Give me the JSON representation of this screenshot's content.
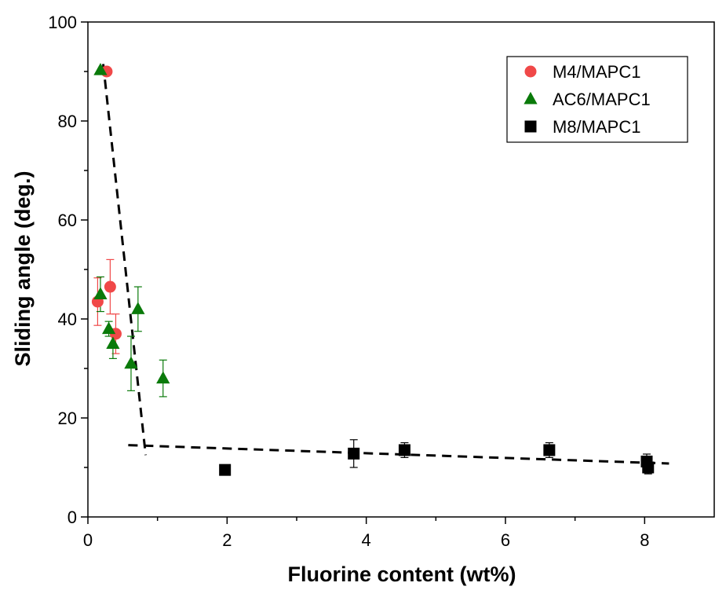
{
  "chart_data": {
    "type": "scatter",
    "xlabel": "Fluorine content (wt%)",
    "ylabel": "Sliding angle (deg.)",
    "xlim": [
      0,
      9
    ],
    "ylim": [
      0,
      100
    ],
    "xticks": [
      0,
      2,
      4,
      6,
      8
    ],
    "xticks_minor": [
      1,
      3,
      5,
      7
    ],
    "yticks": [
      0,
      20,
      40,
      60,
      80,
      100
    ],
    "yticks_minor": [
      10,
      30,
      50,
      70,
      90
    ],
    "x_tick_labels": [
      "0",
      "2",
      "4",
      "6",
      "8"
    ],
    "y_tick_labels": [
      "0",
      "20",
      "40",
      "60",
      "80",
      "100"
    ],
    "grid": false,
    "legend": {
      "position": "top-right"
    },
    "series": [
      {
        "name": "M4/MAPC1",
        "marker": "circle",
        "color": "#f04848",
        "errorbar_color": "#f04848",
        "points": [
          {
            "x": 0.14,
            "y": 43.5,
            "err": 4.8
          },
          {
            "x": 0.27,
            "y": 90.0,
            "err": 0
          },
          {
            "x": 0.32,
            "y": 46.5,
            "err": 5.5
          },
          {
            "x": 0.4,
            "y": 37.0,
            "err": 4.0
          }
        ]
      },
      {
        "name": "AC6/MAPC1",
        "marker": "triangle",
        "color": "#0a7a0a",
        "errorbar_color": "#0a7a0a",
        "points": [
          {
            "x": 0.18,
            "y": 90.3,
            "err": 0
          },
          {
            "x": 0.18,
            "y": 45.0,
            "err": 3.5
          },
          {
            "x": 0.3,
            "y": 38.0,
            "err": 1.5
          },
          {
            "x": 0.36,
            "y": 35.0,
            "err": 3.0
          },
          {
            "x": 0.62,
            "y": 31.0,
            "err": 5.5
          },
          {
            "x": 0.72,
            "y": 42.0,
            "err": 4.5
          },
          {
            "x": 1.08,
            "y": 28.0,
            "err": 3.7
          }
        ]
      },
      {
        "name": "M8/MAPC1",
        "marker": "square",
        "color": "#000000",
        "errorbar_color": "#000000",
        "points": [
          {
            "x": 1.97,
            "y": 9.5,
            "err": 1.0
          },
          {
            "x": 3.82,
            "y": 12.8,
            "err": 2.8
          },
          {
            "x": 4.55,
            "y": 13.5,
            "err": 1.5
          },
          {
            "x": 6.63,
            "y": 13.5,
            "err": 1.5
          },
          {
            "x": 8.03,
            "y": 11.2,
            "err": 1.5
          },
          {
            "x": 8.05,
            "y": 10.0,
            "err": 1.3
          }
        ]
      }
    ],
    "trend_lines": [
      {
        "style": "dashed",
        "color": "#000000",
        "points": [
          [
            0.22,
            91.5
          ],
          [
            0.83,
            12.5
          ]
        ]
      },
      {
        "style": "dashed",
        "color": "#000000",
        "points": [
          [
            0.58,
            14.5
          ],
          [
            8.35,
            10.8
          ]
        ]
      }
    ]
  }
}
